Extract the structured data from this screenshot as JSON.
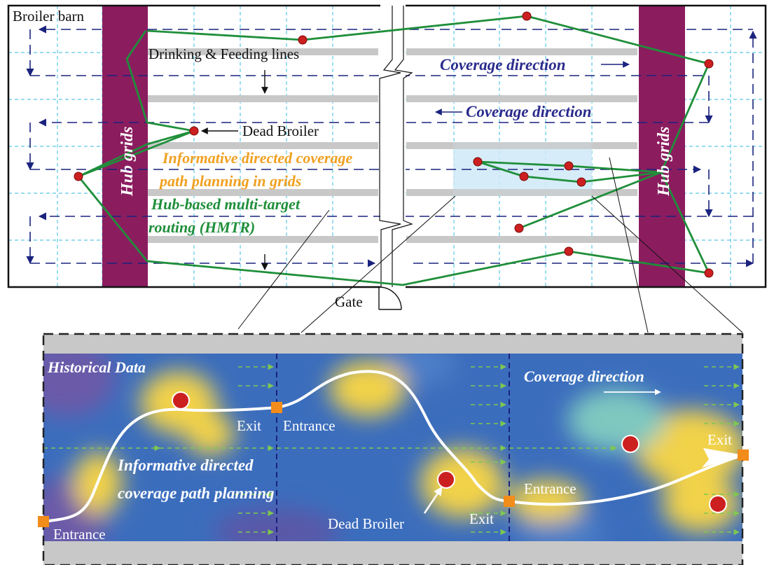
{
  "barn": {
    "title": "Broiler barn",
    "lines_label": "Drinking & Feeding lines",
    "coverage_direction_1": "Coverage direction",
    "coverage_direction_2": "Coverage direction",
    "dead_broiler_label": "Dead Broiler",
    "hub_grids_left": "Hub grids",
    "hub_grids_right": "Hub grids",
    "planning_line1": "Informative directed coverage",
    "planning_line2": "path planning in grids",
    "hmtr_line1": "Hub-based multi-target",
    "hmtr_line2": "routing (HMTR)",
    "gate_label": "Gate"
  },
  "detail": {
    "historical_label": "Historical Data",
    "coverage_direction": "Coverage direction",
    "planning_line1": "Informative directed",
    "planning_line2": "coverage path planning",
    "entrance_1": "Entrance",
    "exit_1": "Exit",
    "entrance_2": "Entrance",
    "dead_broiler_label": "Dead Broiler",
    "exit_2": "Exit",
    "entrance_3": "Entrance",
    "exit_3": "Exit"
  },
  "colors": {
    "hub": "#8b1d5f",
    "route": "#1f8f3a",
    "coverage_text": "#2a2a8c",
    "planning_text": "#f0a020",
    "hmtr_text": "#1f8f3a",
    "dashed_path": "#1a237e",
    "grid": "#5cc8e8",
    "feed_line": "#c8c8c8",
    "broiler": "#cc1f1f"
  }
}
